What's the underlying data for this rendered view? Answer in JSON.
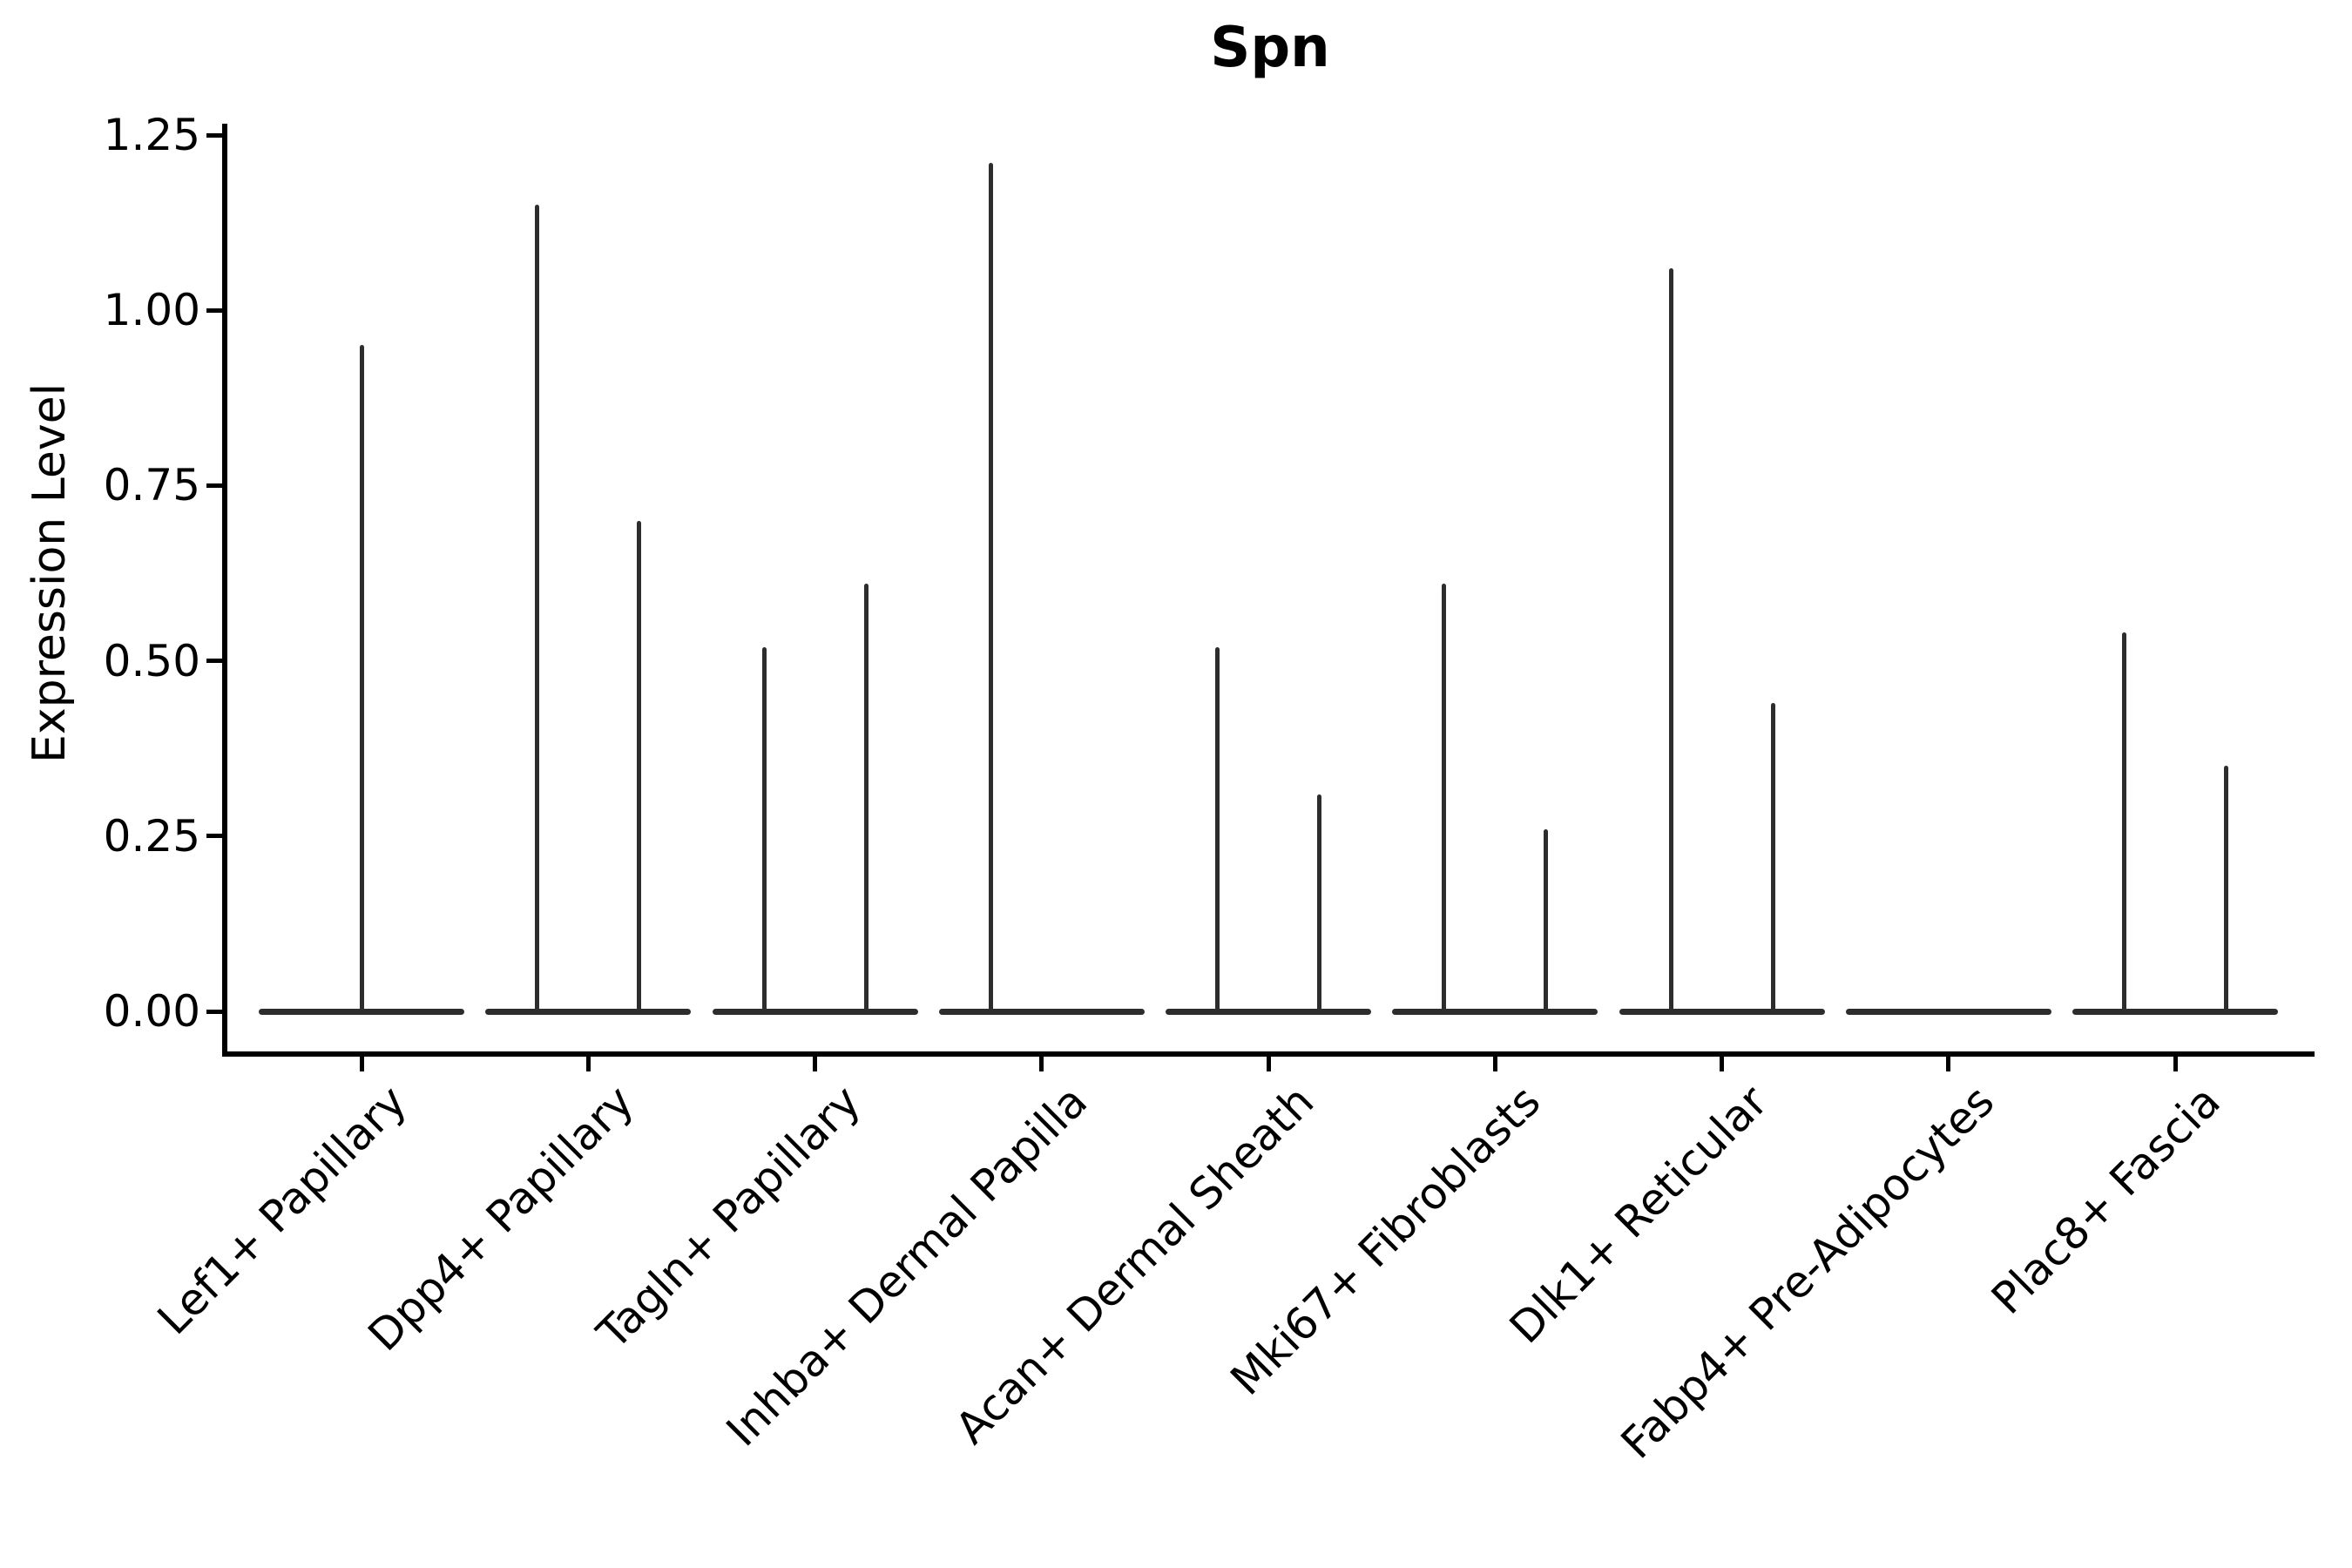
{
  "chart_data": {
    "type": "violin",
    "title": "Spn",
    "ylabel": "Expression Level",
    "xlabel": "",
    "ylim": [
      0,
      1.25
    ],
    "yticks": [
      "0.00",
      "0.25",
      "0.50",
      "0.75",
      "1.00",
      "1.25"
    ],
    "grid": false,
    "legend": false,
    "colors": {
      "violin_line": "#2d2d2d",
      "axis": "#000000",
      "text": "#000000",
      "background": "#ffffff"
    },
    "layout_hints": {
      "x_label_rotation_deg": 45,
      "violins_collapse_to_zero_baseline": true,
      "spikes_mark_max_expression": true
    },
    "categories": [
      {
        "label": "Lef1+ Papillary",
        "violins": [
          {
            "position": "center",
            "max_expression": 0.95
          }
        ]
      },
      {
        "label": "Dpp4+ Papillary",
        "violins": [
          {
            "position": "left",
            "max_expression": 1.15
          },
          {
            "position": "right",
            "max_expression": 0.7
          }
        ]
      },
      {
        "label": "Tagln+ Papillary",
        "violins": [
          {
            "position": "left",
            "max_expression": 0.52
          },
          {
            "position": "right",
            "max_expression": 0.61
          }
        ]
      },
      {
        "label": "Inhba+ Dermal Papilla",
        "violins": [
          {
            "position": "left",
            "max_expression": 1.21
          },
          {
            "position": "right",
            "max_expression": 0.0
          }
        ]
      },
      {
        "label": "Acan+ Dermal Sheath",
        "violins": [
          {
            "position": "left",
            "max_expression": 0.52
          },
          {
            "position": "right",
            "max_expression": 0.31
          }
        ]
      },
      {
        "label": "Mki67+ Fibroblasts",
        "violins": [
          {
            "position": "left",
            "max_expression": 0.61
          },
          {
            "position": "right",
            "max_expression": 0.26
          }
        ]
      },
      {
        "label": "Dlk1+ Reticular",
        "violins": [
          {
            "position": "left",
            "max_expression": 1.06
          },
          {
            "position": "right",
            "max_expression": 0.44
          }
        ]
      },
      {
        "label": "Fabp4+ Pre-Adipocytes",
        "violins": [
          {
            "position": "left",
            "max_expression": 0.0
          },
          {
            "position": "right",
            "max_expression": 0.0
          }
        ]
      },
      {
        "label": "Plac8+ Fascia",
        "violins": [
          {
            "position": "left",
            "max_expression": 0.54
          },
          {
            "position": "right",
            "max_expression": 0.35
          }
        ]
      }
    ]
  }
}
